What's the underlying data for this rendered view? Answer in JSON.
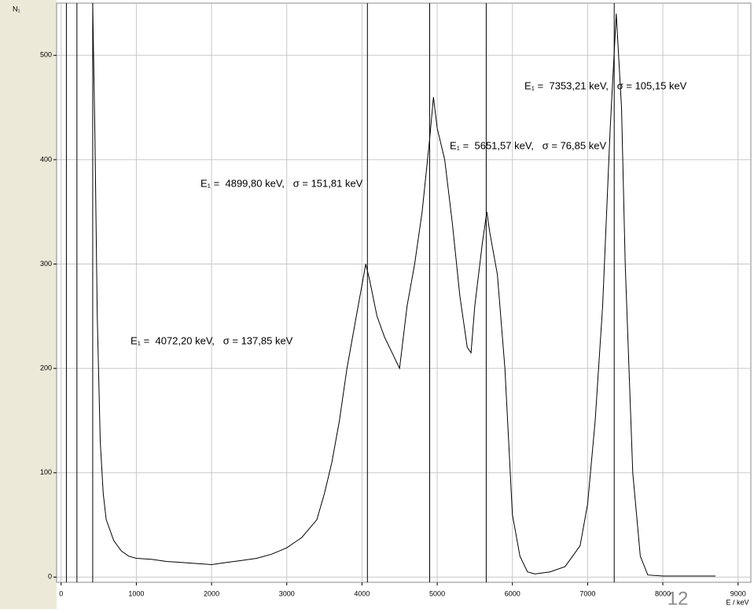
{
  "chart_data": {
    "type": "line",
    "y_label": "N₁",
    "x_label": "E / keV",
    "x": [
      420,
      450,
      480,
      520,
      560,
      600,
      700,
      800,
      900,
      1000,
      1200,
      1400,
      1600,
      1800,
      2000,
      2200,
      2400,
      2600,
      2800,
      3000,
      3200,
      3400,
      3500,
      3600,
      3700,
      3800,
      3900,
      4000,
      4050,
      4100,
      4200,
      4300,
      4400,
      4500,
      4550,
      4600,
      4700,
      4800,
      4900,
      4950,
      5000,
      5100,
      5200,
      5300,
      5400,
      5450,
      5500,
      5600,
      5660,
      5700,
      5800,
      5900,
      6000,
      6100,
      6200,
      6300,
      6500,
      6700,
      6900,
      7000,
      7100,
      7200,
      7300,
      7380,
      7450,
      7500,
      7600,
      7700,
      7800,
      8000,
      8700
    ],
    "series": [
      {
        "name": "N1",
        "color": "#000000",
        "values": [
          550,
          420,
          250,
          130,
          80,
          55,
          35,
          25,
          20,
          18,
          17,
          15,
          14,
          13,
          12,
          14,
          16,
          18,
          22,
          28,
          38,
          55,
          80,
          110,
          150,
          200,
          240,
          280,
          300,
          285,
          250,
          230,
          215,
          200,
          230,
          260,
          300,
          350,
          420,
          460,
          430,
          400,
          340,
          270,
          220,
          215,
          260,
          320,
          350,
          330,
          290,
          200,
          60,
          20,
          5,
          3,
          5,
          10,
          30,
          70,
          150,
          260,
          430,
          540,
          450,
          300,
          100,
          20,
          2,
          1,
          1
        ]
      }
    ],
    "vlines": [
      70,
      210,
      420,
      4072.2,
      4899.8,
      5651.57,
      7353.21
    ],
    "annotations": [
      "E₁ =  4072,20 keV,   σ = 137,85 keV",
      "E₁ =  4899,80 keV,   σ = 151,81 keV",
      "E₁ =  5651,57 keV,   σ = 76,85 keV",
      "E₁ =  7353,21 keV,   σ = 105,15 keV"
    ],
    "xlim": [
      -60,
      9170
    ],
    "ylim": [
      -5,
      550
    ],
    "xticks": [
      0,
      1000,
      2000,
      3000,
      4000,
      5000,
      6000,
      7000,
      8000,
      9000
    ],
    "yticks": [
      0,
      100,
      200,
      300,
      400,
      500
    ],
    "grid": true
  },
  "page_number": "12"
}
